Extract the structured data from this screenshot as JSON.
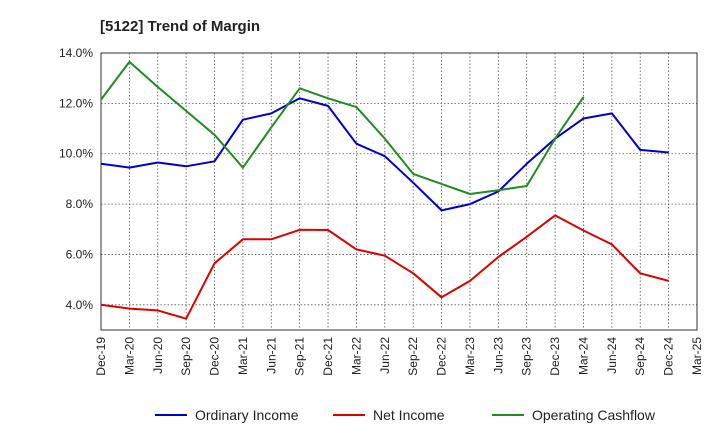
{
  "chart_data": {
    "type": "line",
    "title": "[5122]  Trend of Margin",
    "xlabel": "",
    "ylabel": "",
    "x": [
      "Dec-19",
      "Mar-20",
      "Jun-20",
      "Sep-20",
      "Dec-20",
      "Mar-21",
      "Jun-21",
      "Sep-21",
      "Dec-21",
      "Mar-22",
      "Jun-22",
      "Sep-22",
      "Dec-22",
      "Mar-23",
      "Jun-23",
      "Sep-23",
      "Dec-23",
      "Mar-24",
      "Jun-24",
      "Sep-24",
      "Dec-24",
      "Mar-25"
    ],
    "ylim": [
      3.0,
      14.0
    ],
    "yticks": [
      4.0,
      6.0,
      8.0,
      10.0,
      12.0,
      14.0
    ],
    "ytick_labels": [
      "4.0%",
      "6.0%",
      "8.0%",
      "10.0%",
      "12.0%",
      "14.0%"
    ],
    "grid": true,
    "legend_position": "bottom",
    "series": [
      {
        "name": "Ordinary Income",
        "color": "#0000cc",
        "values": [
          9.6,
          9.45,
          9.65,
          9.5,
          9.7,
          11.35,
          11.6,
          12.2,
          11.9,
          10.4,
          9.9,
          8.85,
          7.75,
          8.0,
          8.5,
          9.6,
          10.6,
          11.4,
          11.6,
          10.15,
          10.05,
          null
        ]
      },
      {
        "name": "Net Income",
        "color": "#dd0000",
        "values": [
          4.0,
          3.85,
          3.78,
          3.45,
          5.65,
          6.6,
          6.6,
          6.98,
          6.97,
          6.2,
          5.95,
          5.25,
          4.3,
          4.95,
          5.9,
          6.7,
          7.55,
          6.95,
          6.4,
          5.25,
          4.95,
          null
        ]
      },
      {
        "name": "Operating Cashflow",
        "color": "#228b22",
        "values": [
          12.15,
          13.65,
          12.65,
          11.7,
          10.75,
          9.45,
          11.05,
          12.6,
          12.2,
          11.85,
          10.6,
          9.2,
          8.8,
          8.4,
          8.55,
          8.72,
          10.6,
          12.25,
          null,
          null,
          null,
          null
        ]
      }
    ]
  }
}
